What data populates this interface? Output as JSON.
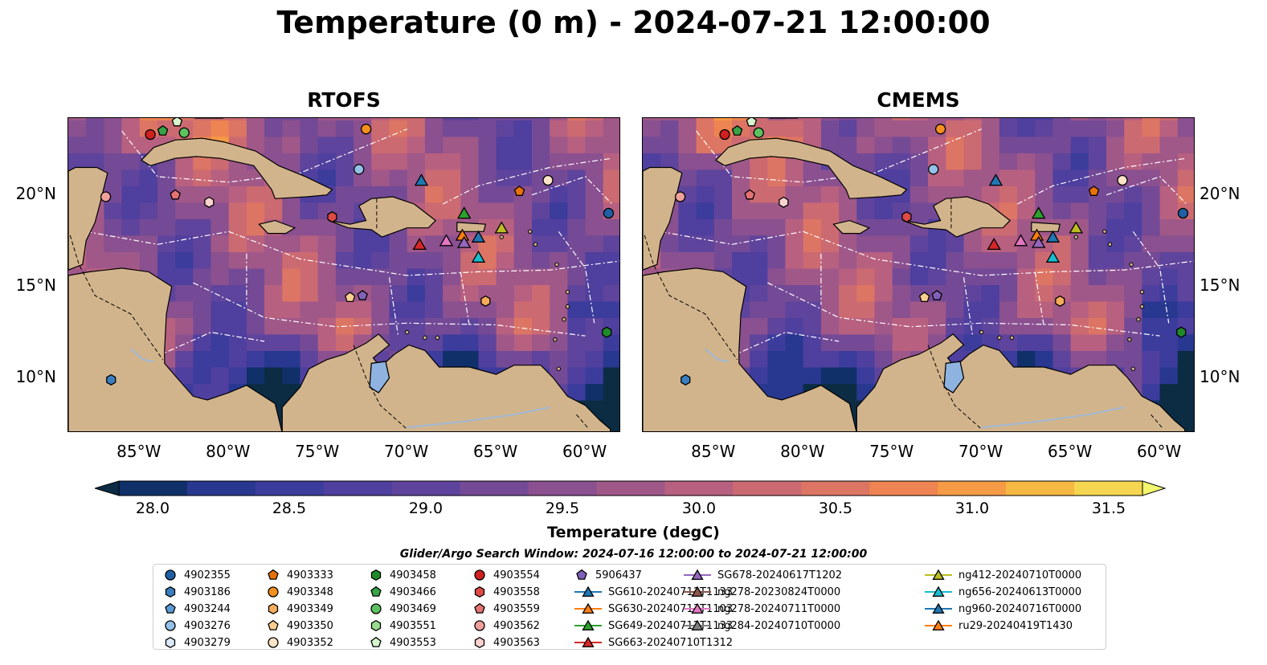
{
  "title": "Temperature (0 m) - 2024-07-21 12:00:00",
  "panels": [
    {
      "name": "RTOFS"
    },
    {
      "name": "CMEMS"
    }
  ],
  "map_extent": {
    "lon": [
      -89,
      -58
    ],
    "lat": [
      7,
      24.2
    ]
  },
  "lon_ticks": [
    "85°W",
    "80°W",
    "75°W",
    "70°W",
    "65°W",
    "60°W"
  ],
  "lat_ticks": [
    "20°N",
    "15°N",
    "10°N"
  ],
  "colorbar": {
    "label": "Temperature (degC)",
    "range": [
      28.0,
      31.5
    ],
    "extend": "both",
    "tick_labels": [
      "28.0",
      "28.5",
      "29.0",
      "29.5",
      "30.0",
      "30.5",
      "31.0",
      "31.5"
    ],
    "colors": [
      "#0c2c44",
      "#10306a",
      "#283890",
      "#3b3c9c",
      "#4f3f9f",
      "#5e449c",
      "#744a96",
      "#8a5090",
      "#a05889",
      "#b86080",
      "#cc6a72",
      "#dd7564",
      "#ee8451",
      "#f59a45",
      "#f5b843",
      "#f4d651",
      "#f1f66c"
    ]
  },
  "search_window": "Glider/Argo Search Window: 2024-07-16 12:00:00 to 2024-07-21 12:00:00",
  "legend": [
    {
      "label": "4902355",
      "marker": "circle",
      "color": "#1f5fa6"
    },
    {
      "label": "4903186",
      "marker": "hexagon",
      "color": "#3a7ec0"
    },
    {
      "label": "4903244",
      "marker": "pentagon",
      "color": "#5a9bd5"
    },
    {
      "label": "4903276",
      "marker": "circle",
      "color": "#93c1e8"
    },
    {
      "label": "4903279",
      "marker": "hexagon",
      "color": "#dbeaf8"
    },
    {
      "label": "4903333",
      "marker": "pentagon",
      "color": "#e8710a"
    },
    {
      "label": "4903348",
      "marker": "circle",
      "color": "#f4901e"
    },
    {
      "label": "4903349",
      "marker": "hexagon",
      "color": "#f7ac5c"
    },
    {
      "label": "4903350",
      "marker": "pentagon",
      "color": "#fbcf8e"
    },
    {
      "label": "4903352",
      "marker": "circle",
      "color": "#fde4c6"
    },
    {
      "label": "4903458",
      "marker": "hexagon",
      "color": "#1f8a2a"
    },
    {
      "label": "4903466",
      "marker": "pentagon",
      "color": "#37a447"
    },
    {
      "label": "4903469",
      "marker": "circle",
      "color": "#5cc15e"
    },
    {
      "label": "4903551",
      "marker": "hexagon",
      "color": "#98dc8f"
    },
    {
      "label": "4903553",
      "marker": "pentagon",
      "color": "#d6f5cc"
    },
    {
      "label": "4903554",
      "marker": "circle",
      "color": "#d02020"
    },
    {
      "label": "4903558",
      "marker": "hexagon",
      "color": "#dd4b44"
    },
    {
      "label": "4903559",
      "marker": "pentagon",
      "color": "#e57373"
    },
    {
      "label": "4903562",
      "marker": "circle",
      "color": "#f0a09a"
    },
    {
      "label": "4903563",
      "marker": "hexagon",
      "color": "#f9d2cf"
    },
    {
      "label": "5906437",
      "marker": "pentagon",
      "color": "#8060b8"
    },
    {
      "label": "SG610-20240711T1133",
      "marker": "triangle",
      "color": "#1f77b4"
    },
    {
      "label": "SG630-20240713T1103",
      "marker": "triangle",
      "color": "#ff7f0e"
    },
    {
      "label": "SG649-20240712T1133",
      "marker": "triangle",
      "color": "#2ca02c"
    },
    {
      "label": "SG663-20240710T1312",
      "marker": "triangle",
      "color": "#d62728"
    },
    {
      "label": "SG678-20240617T1202",
      "marker": "triangle",
      "color": "#9467bd"
    },
    {
      "label": "ng278-20230824T0000",
      "marker": "triangle",
      "color": "#8c564b"
    },
    {
      "label": "ng278-20240711T0000",
      "marker": "triangle",
      "color": "#e377c2"
    },
    {
      "label": "ng284-20240710T0000",
      "marker": "triangle",
      "color": "#7f7f7f"
    },
    {
      "label": "ng412-20240710T0000",
      "marker": "triangle",
      "color": "#bcbd22"
    },
    {
      "label": "ng656-20240613T0000",
      "marker": "triangle",
      "color": "#17becf"
    },
    {
      "label": "ng960-20240716T0000",
      "marker": "triangle",
      "color": "#1f77b4"
    },
    {
      "label": "ru29-20240419T1430",
      "marker": "triangle",
      "color": "#ff7f0e"
    }
  ],
  "markers": [
    {
      "id": "4903554",
      "lon": -84.4,
      "lat": 23.3
    },
    {
      "id": "4903466",
      "lon": -83.7,
      "lat": 23.5
    },
    {
      "id": "4903553",
      "lon": -82.9,
      "lat": 24.0
    },
    {
      "id": "4903469",
      "lon": -82.5,
      "lat": 23.4
    },
    {
      "id": "4903348",
      "lon": -72.3,
      "lat": 23.6
    },
    {
      "id": "4903276",
      "lon": -72.7,
      "lat": 21.4
    },
    {
      "id": "4903352",
      "lon": -62.1,
      "lat": 20.8
    },
    {
      "id": "4903333",
      "lon": -63.7,
      "lat": 20.2
    },
    {
      "id": "4902355",
      "lon": -58.7,
      "lat": 19.0
    },
    {
      "id": "4903562",
      "lon": -86.9,
      "lat": 19.9
    },
    {
      "id": "4903559",
      "lon": -83.0,
      "lat": 20.0
    },
    {
      "id": "4903563",
      "lon": -81.1,
      "lat": 19.6
    },
    {
      "id": "4903558",
      "lon": -74.2,
      "lat": 18.8
    },
    {
      "id": "4903350",
      "lon": -73.2,
      "lat": 14.4
    },
    {
      "id": "5906437",
      "lon": -72.5,
      "lat": 14.5
    },
    {
      "id": "4903349",
      "lon": -65.6,
      "lat": 14.2
    },
    {
      "id": "4903458",
      "lon": -58.8,
      "lat": 12.5
    },
    {
      "id": "4903186",
      "lon": -86.6,
      "lat": 9.9
    },
    {
      "id": "SG610-20240711T1133",
      "lon": -69.2,
      "lat": 20.8
    },
    {
      "id": "SG649-20240712T1133",
      "lon": -66.8,
      "lat": 19.0
    },
    {
      "id": "ng412-20240710T0000",
      "lon": -64.7,
      "lat": 18.2
    },
    {
      "id": "SG630-20240713T1103",
      "lon": -66.9,
      "lat": 17.8
    },
    {
      "id": "ng960-20240716T0000",
      "lon": -66.0,
      "lat": 17.7
    },
    {
      "id": "ng278-20240711T0000",
      "lon": -67.8,
      "lat": 17.5
    },
    {
      "id": "SG678-20240617T1202",
      "lon": -66.8,
      "lat": 17.4
    },
    {
      "id": "SG663-20240710T1312",
      "lon": -69.3,
      "lat": 17.3
    },
    {
      "id": "ng656-20240613T0000",
      "lon": -66.0,
      "lat": 16.6
    }
  ]
}
